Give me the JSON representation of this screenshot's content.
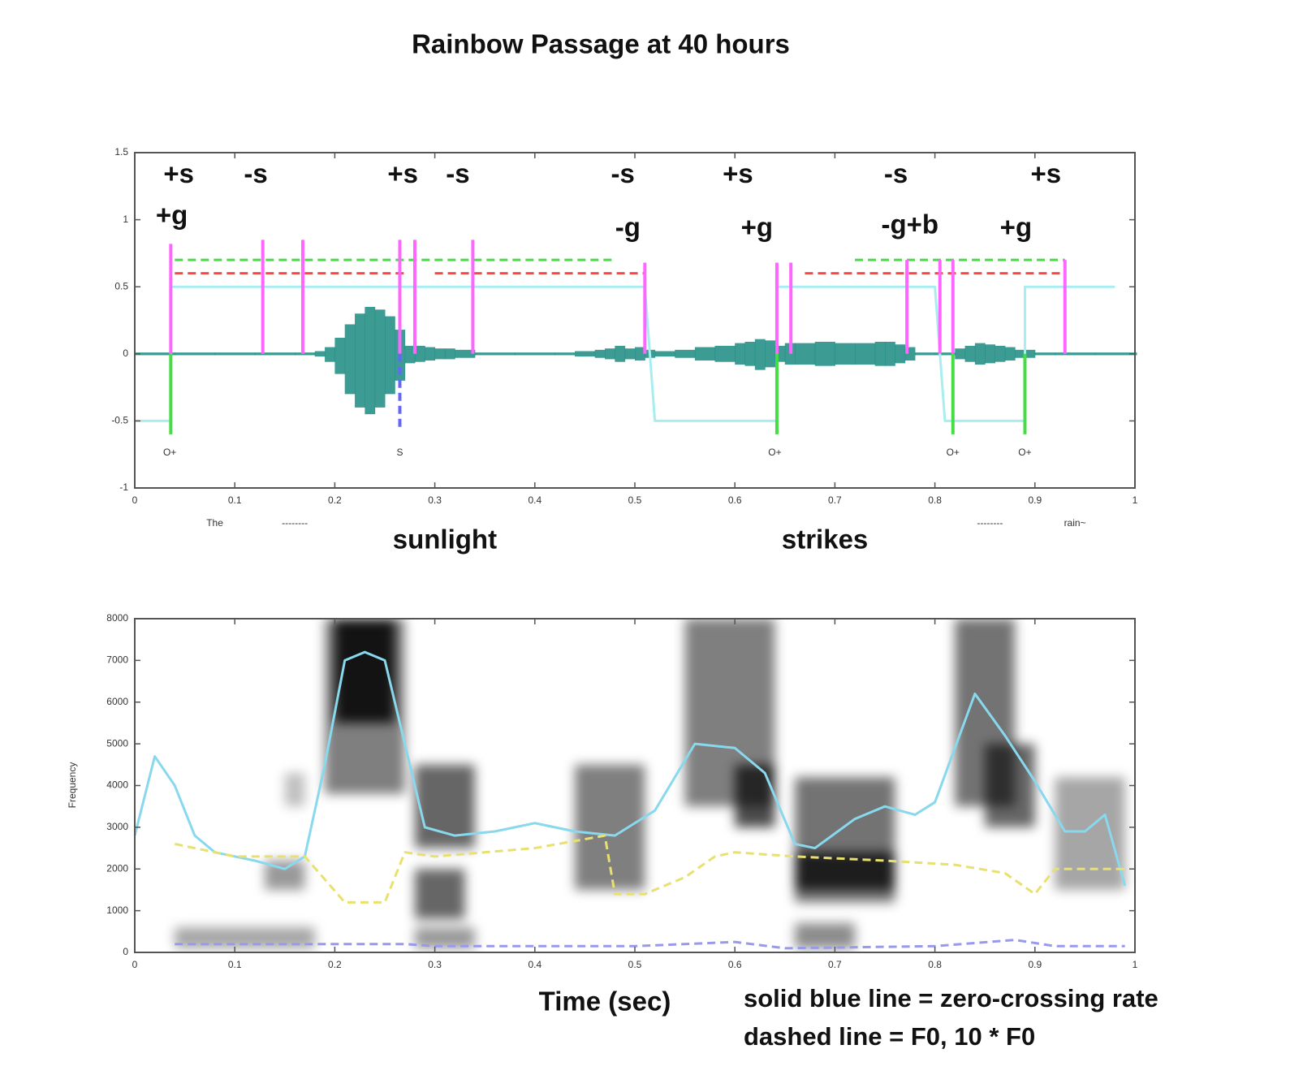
{
  "chart_data": [
    {
      "type": "waveform",
      "title": "Rainbow Passage at 40 hours",
      "xlim": [
        0,
        1
      ],
      "ylim": [
        -1,
        1.5
      ],
      "xticks": [
        0,
        0.1,
        0.2,
        0.3,
        0.4,
        0.5,
        0.6,
        0.7,
        0.8,
        0.9,
        1
      ],
      "yticks": [
        -1,
        -0.5,
        0,
        0.5,
        1,
        1.5
      ],
      "waveform": {
        "color": "#1a8a80",
        "x": [
          0,
          0.04,
          0.08,
          0.12,
          0.16,
          0.18,
          0.19,
          0.2,
          0.21,
          0.22,
          0.23,
          0.24,
          0.25,
          0.26,
          0.27,
          0.28,
          0.29,
          0.3,
          0.31,
          0.32,
          0.34,
          0.38,
          0.42,
          0.44,
          0.46,
          0.47,
          0.48,
          0.49,
          0.5,
          0.51,
          0.52,
          0.54,
          0.56,
          0.58,
          0.6,
          0.61,
          0.62,
          0.63,
          0.64,
          0.65,
          0.66,
          0.68,
          0.7,
          0.72,
          0.74,
          0.75,
          0.76,
          0.77,
          0.78,
          0.8,
          0.82,
          0.83,
          0.84,
          0.85,
          0.86,
          0.87,
          0.88,
          0.9,
          0.92,
          0.96,
          1
        ],
        "upper": [
          0.01,
          0.01,
          0.01,
          0.01,
          0.01,
          0.02,
          0.05,
          0.12,
          0.22,
          0.3,
          0.35,
          0.33,
          0.28,
          0.18,
          0.06,
          0.06,
          0.05,
          0.04,
          0.04,
          0.03,
          0.01,
          0.01,
          0.01,
          0.02,
          0.03,
          0.04,
          0.06,
          0.04,
          0.05,
          0.03,
          0.02,
          0.03,
          0.05,
          0.06,
          0.08,
          0.09,
          0.11,
          0.1,
          0.06,
          0.08,
          0.08,
          0.09,
          0.08,
          0.08,
          0.09,
          0.09,
          0.07,
          0.05,
          0.01,
          0.01,
          0.04,
          0.06,
          0.08,
          0.07,
          0.06,
          0.05,
          0.03,
          0.01,
          0.01,
          0.01,
          0.01
        ],
        "lower": [
          -0.01,
          -0.01,
          -0.01,
          -0.01,
          -0.01,
          -0.02,
          -0.06,
          -0.15,
          -0.3,
          -0.4,
          -0.45,
          -0.4,
          -0.3,
          -0.2,
          -0.07,
          -0.06,
          -0.05,
          -0.04,
          -0.04,
          -0.03,
          -0.01,
          -0.01,
          -0.01,
          -0.02,
          -0.03,
          -0.04,
          -0.06,
          -0.04,
          -0.05,
          -0.03,
          -0.02,
          -0.03,
          -0.05,
          -0.06,
          -0.08,
          -0.09,
          -0.12,
          -0.1,
          -0.06,
          -0.08,
          -0.08,
          -0.09,
          -0.08,
          -0.08,
          -0.09,
          -0.09,
          -0.07,
          -0.05,
          -0.01,
          -0.01,
          -0.04,
          -0.06,
          -0.08,
          -0.07,
          -0.06,
          -0.05,
          -0.03,
          -0.01,
          -0.01,
          -0.01,
          -0.01
        ]
      },
      "series": [
        {
          "style": "line",
          "color": "#a8eef0",
          "dash": false,
          "x": [
            0,
            0.036,
            0.036,
            0.51,
            0.52,
            0.642,
            0.642,
            0.8,
            0.81,
            0.89,
            0.89,
            0.98
          ],
          "values": [
            -0.5,
            -0.5,
            0.5,
            0.5,
            -0.5,
            -0.5,
            0.5,
            0.5,
            -0.5,
            -0.5,
            0.5,
            0.5
          ]
        },
        {
          "style": "line",
          "color": "#44dd44",
          "dash": true,
          "x": [
            0.04,
            0.48,
            0.6,
            0.72,
            0.93
          ],
          "values": [
            0.7,
            0.7,
            null,
            0.7,
            0.7
          ]
        },
        {
          "style": "line",
          "color": "#ff4444",
          "dash": true,
          "x": [
            0.04,
            0.27,
            0.28,
            0.3,
            0.51,
            0.6,
            0.67,
            0.93
          ],
          "values": [
            0.6,
            0.6,
            null,
            0.6,
            0.6,
            null,
            0.6,
            0.6
          ]
        },
        {
          "style": "stem",
          "color": "#ff66ff",
          "dash": false,
          "x": [
            0.036,
            0.128,
            0.168,
            0.265,
            0.28,
            0.338,
            0.51,
            0.642,
            0.656,
            0.772,
            0.805,
            0.818,
            0.93
          ],
          "values": [
            0.82,
            0.85,
            0.85,
            0.85,
            0.85,
            0.85,
            0.68,
            0.68,
            0.68,
            0.7,
            0.7,
            0.7,
            0.7
          ]
        },
        {
          "style": "stem",
          "color": "#44dd44",
          "dash": false,
          "x": [
            0.036,
            0.642,
            0.818,
            0.89
          ],
          "values": [
            -0.6,
            -0.6,
            -0.6,
            -0.6
          ]
        },
        {
          "style": "stem",
          "color": "#6666ff",
          "dash": true,
          "x": [
            0.265
          ],
          "values": [
            -0.55
          ]
        }
      ],
      "labels": [
        {
          "text": "+s",
          "x": 0.044,
          "y": 1.33
        },
        {
          "text": "-s",
          "x": 0.121,
          "y": 1.33
        },
        {
          "text": "+s",
          "x": 0.268,
          "y": 1.33
        },
        {
          "text": "-s",
          "x": 0.323,
          "y": 1.33
        },
        {
          "text": "-s",
          "x": 0.488,
          "y": 1.33
        },
        {
          "text": "+s",
          "x": 0.603,
          "y": 1.33
        },
        {
          "text": "-s",
          "x": 0.761,
          "y": 1.33
        },
        {
          "text": "+s",
          "x": 0.911,
          "y": 1.33
        },
        {
          "text": "+g",
          "x": 0.037,
          "y": 1.02
        },
        {
          "text": "-g",
          "x": 0.493,
          "y": 0.93
        },
        {
          "text": "+g",
          "x": 0.622,
          "y": 0.93
        },
        {
          "text": "-g+b",
          "x": 0.775,
          "y": 0.95
        },
        {
          "text": "+g",
          "x": 0.881,
          "y": 0.93
        }
      ],
      "small_labels": [
        {
          "text": "O+",
          "x": 0.035,
          "y": -0.74
        },
        {
          "text": "S",
          "x": 0.265,
          "y": -0.74
        },
        {
          "text": "O+",
          "x": 0.64,
          "y": -0.74
        },
        {
          "text": "O+",
          "x": 0.818,
          "y": -0.74
        },
        {
          "text": "O+",
          "x": 0.89,
          "y": -0.74
        }
      ],
      "words": [
        {
          "text": "sunlight",
          "x": 0.31
        },
        {
          "text": "strikes",
          "x": 0.69
        }
      ],
      "minor_words": [
        {
          "text": "The",
          "x": 0.08
        },
        {
          "text": "--------",
          "x": 0.16
        },
        {
          "text": "--------",
          "x": 0.855
        },
        {
          "text": "rain~",
          "x": 0.94
        }
      ]
    },
    {
      "type": "spectrogram",
      "xlabel": "Time (sec)",
      "ylabel": "Frequency",
      "xlim": [
        0,
        1
      ],
      "ylim": [
        0,
        8000
      ],
      "xticks": [
        0,
        0.1,
        0.2,
        0.3,
        0.4,
        0.5,
        0.6,
        0.7,
        0.8,
        0.9,
        1
      ],
      "yticks": [
        0,
        1000,
        2000,
        3000,
        4000,
        5000,
        6000,
        7000,
        8000
      ],
      "regions": [
        {
          "t": [
            0.19,
            0.27
          ],
          "f": [
            3800,
            8000
          ],
          "level": 0.5
        },
        {
          "t": [
            0.2,
            0.26
          ],
          "f": [
            5500,
            8000
          ],
          "level": 0.85
        },
        {
          "t": [
            0.04,
            0.18
          ],
          "f": [
            100,
            600
          ],
          "level": 0.35
        },
        {
          "t": [
            0.13,
            0.17
          ],
          "f": [
            1500,
            2200
          ],
          "level": 0.4
        },
        {
          "t": [
            0.15,
            0.17
          ],
          "f": [
            3500,
            4300
          ],
          "level": 0.25
        },
        {
          "t": [
            0.28,
            0.34
          ],
          "f": [
            2500,
            4500
          ],
          "level": 0.6
        },
        {
          "t": [
            0.28,
            0.33
          ],
          "f": [
            800,
            2000
          ],
          "level": 0.6
        },
        {
          "t": [
            0.28,
            0.34
          ],
          "f": [
            100,
            600
          ],
          "level": 0.4
        },
        {
          "t": [
            0.44,
            0.51
          ],
          "f": [
            1500,
            4500
          ],
          "level": 0.5
        },
        {
          "t": [
            0.55,
            0.64
          ],
          "f": [
            3500,
            8000
          ],
          "level": 0.5
        },
        {
          "t": [
            0.6,
            0.64
          ],
          "f": [
            3000,
            4500
          ],
          "level": 0.7
        },
        {
          "t": [
            0.66,
            0.76
          ],
          "f": [
            1200,
            4200
          ],
          "level": 0.55
        },
        {
          "t": [
            0.66,
            0.76
          ],
          "f": [
            1500,
            2400
          ],
          "level": 0.75
        },
        {
          "t": [
            0.66,
            0.72
          ],
          "f": [
            100,
            700
          ],
          "level": 0.45
        },
        {
          "t": [
            0.82,
            0.88
          ],
          "f": [
            3500,
            8000
          ],
          "level": 0.55
        },
        {
          "t": [
            0.85,
            0.9
          ],
          "f": [
            3000,
            5000
          ],
          "level": 0.6
        },
        {
          "t": [
            0.92,
            0.99
          ],
          "f": [
            1500,
            4200
          ],
          "level": 0.35
        }
      ],
      "series": [
        {
          "style": "line",
          "color": "#88d8ee",
          "dash": false,
          "x": [
            0,
            0.02,
            0.04,
            0.06,
            0.08,
            0.12,
            0.15,
            0.17,
            0.19,
            0.21,
            0.23,
            0.25,
            0.27,
            0.29,
            0.32,
            0.36,
            0.4,
            0.44,
            0.48,
            0.52,
            0.56,
            0.6,
            0.63,
            0.66,
            0.68,
            0.72,
            0.75,
            0.78,
            0.8,
            0.84,
            0.87,
            0.9,
            0.93,
            0.95,
            0.97,
            0.99
          ],
          "values": [
            2800,
            4700,
            4000,
            2800,
            2400,
            2200,
            2000,
            2300,
            4500,
            7000,
            7200,
            7000,
            5000,
            3000,
            2800,
            2900,
            3100,
            2900,
            2800,
            3400,
            5000,
            4900,
            4300,
            2600,
            2500,
            3200,
            3500,
            3300,
            3600,
            6200,
            5200,
            4100,
            2900,
            2900,
            3300,
            1600
          ]
        },
        {
          "style": "line",
          "color": "#e8e070",
          "dash": true,
          "x": [
            0.04,
            0.1,
            0.17,
            0.21,
            0.25,
            0.27,
            0.3,
            0.4,
            0.47,
            0.48,
            0.51,
            0.55,
            0.58,
            0.6,
            0.66,
            0.75,
            0.82,
            0.87,
            0.9,
            0.92,
            0.99
          ],
          "values": [
            2600,
            2300,
            2300,
            1200,
            1200,
            2400,
            2300,
            2500,
            2800,
            1400,
            1400,
            1800,
            2300,
            2400,
            2300,
            2200,
            2100,
            1900,
            1400,
            2000,
            2000
          ]
        },
        {
          "style": "line",
          "color": "#9999ee",
          "dash": true,
          "x": [
            0.04,
            0.2,
            0.27,
            0.3,
            0.5,
            0.6,
            0.65,
            0.8,
            0.88,
            0.92,
            0.99
          ],
          "values": [
            200,
            200,
            200,
            150,
            150,
            250,
            100,
            150,
            300,
            150,
            150
          ]
        }
      ],
      "notes": [
        "solid blue line = zero-crossing rate",
        "dashed line = F0, 10 * F0"
      ]
    }
  ]
}
